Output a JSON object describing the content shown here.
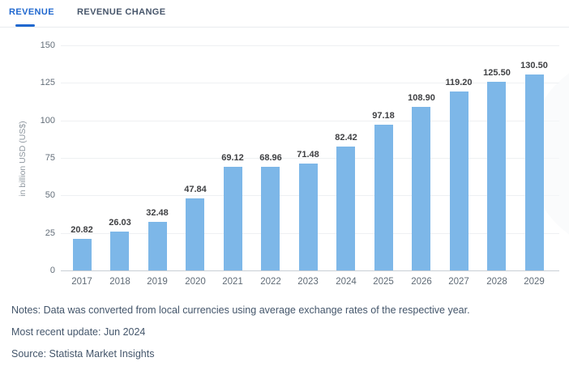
{
  "tabs": [
    {
      "label": "REVENUE",
      "active": true
    },
    {
      "label": "REVENUE CHANGE",
      "active": false
    }
  ],
  "chart_data": {
    "type": "bar",
    "title": "",
    "categories": [
      "2017",
      "2018",
      "2019",
      "2020",
      "2021",
      "2022",
      "2023",
      "2024",
      "2025",
      "2026",
      "2027",
      "2028",
      "2029"
    ],
    "values": [
      20.82,
      26.03,
      32.48,
      47.84,
      69.12,
      68.96,
      71.48,
      82.42,
      97.18,
      108.9,
      119.2,
      125.5,
      130.5
    ],
    "ylabel": "in billion USD (US$)",
    "ylim": [
      0,
      150
    ],
    "yticks": [
      0,
      25,
      50,
      75,
      100,
      125,
      150
    ],
    "grid": true,
    "legend_position": "none",
    "bar_color": "#7db7e8",
    "data_label_decimals": 2
  },
  "notes": {
    "line1": "Notes: Data was converted from local currencies using average exchange rates of the respective year.",
    "line2": "Most recent update: Jun 2024",
    "line3": "Source: Statista Market Insights"
  },
  "colors": {
    "accent_blue": "#2068cf",
    "bar_blue": "#7db7e8",
    "inactive_tab": "#47566b",
    "note_text": "#44566b",
    "gridline": "#eef0f2"
  }
}
